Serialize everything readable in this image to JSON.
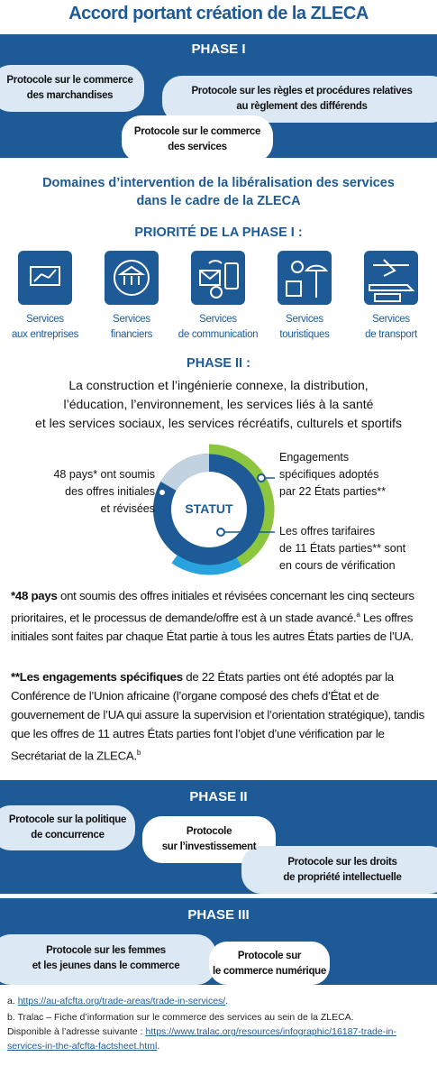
{
  "title": "Accord portant création de la ZLECA",
  "phase1": {
    "title": "PHASE I",
    "protocols": [
      [
        "Protocole sur le commerce",
        "des marchandises"
      ],
      [
        "Protocole sur les règles et procédures relatives",
        "au règlement des différends"
      ],
      [
        "Protocole sur le commerce",
        "des services"
      ]
    ]
  },
  "services": {
    "heading": [
      "Domaines d’intervention de la libéralisation des services",
      "dans le cadre de la ZLECA"
    ],
    "priority": "PRIORITÉ DE LA PHASE I :",
    "sectors": [
      [
        "Services",
        "aux entreprises"
      ],
      [
        "Services",
        "financiers"
      ],
      [
        "Services",
        "de communication"
      ],
      [
        "Services",
        "touristiques"
      ],
      [
        "Services",
        "de transport"
      ]
    ]
  },
  "phase2_scope": {
    "title": "PHASE II :",
    "lines": [
      "La construction et l’ingénierie connexe, la distribution,",
      "l’éducation, l’environnement, les services liés à la santé",
      "et les services sociaux, les services récréatifs, culturels et sportifs"
    ]
  },
  "status": {
    "center": "STATUT",
    "left": [
      "48 pays* ont soumis",
      "des offres initiales",
      "et révisées"
    ],
    "right_top": [
      "Engagements",
      "spécifiques adoptés",
      "par 22 États parties**"
    ],
    "right_bottom": [
      "Les offres tarifaires",
      "de 11 États parties** sont",
      "en cours de vérification"
    ]
  },
  "notes": [
    {
      "bold": "*48 pays",
      "text": " ont soumis des offres initiales et révisées concernant les cinq secteurs prioritaires, et le processus de demande/offre est à un stade avancé.",
      "sup": "a",
      "text_after": " Les offres initiales sont faites par chaque État partie à tous les autres États parties de l’UA."
    },
    {
      "bold": "**Les engagements spécifiques",
      "text": " de 22 États parties ont été adoptés par la Conférence de l’Union africaine (l’organe composé des chefs d’État et de gouvernement de l’UA qui assure la supervision et l’orientation stratégique), tandis que les offres de 11 autres États parties font l’objet d’une vérification par le Secrétariat de la ZLECA.",
      "sup": "b"
    }
  ],
  "phase2": {
    "title": "PHASE II",
    "protocols": [
      [
        "Protocole sur la politique",
        "de concurrence"
      ],
      [
        "Protocole",
        "sur l’investissement"
      ],
      [
        "Protocole sur les droits",
        "de propriété intellectuelle"
      ]
    ]
  },
  "phase3": {
    "title": "PHASE III",
    "protocols": [
      [
        "Protocole sur les femmes",
        "et les jeunes dans le commerce"
      ],
      [
        "Protocole sur",
        "le commerce numérique"
      ]
    ]
  },
  "footnotes": [
    {
      "marker": "a.",
      "link": "https://au-afcfta.org/trade-areas/trade-in-services/",
      "end": "."
    },
    {
      "marker": "b.",
      "text": "Tralac – Fiche d’information sur le commerce des services au sein de la ZLECA.",
      "text2": "Disponible à l’adresse suivante :",
      "link": "https://www.tralac.org/resources/infographic/16187-trade-in-services-in-the-afcfta-factsheet.html",
      "end": "."
    }
  ]
}
